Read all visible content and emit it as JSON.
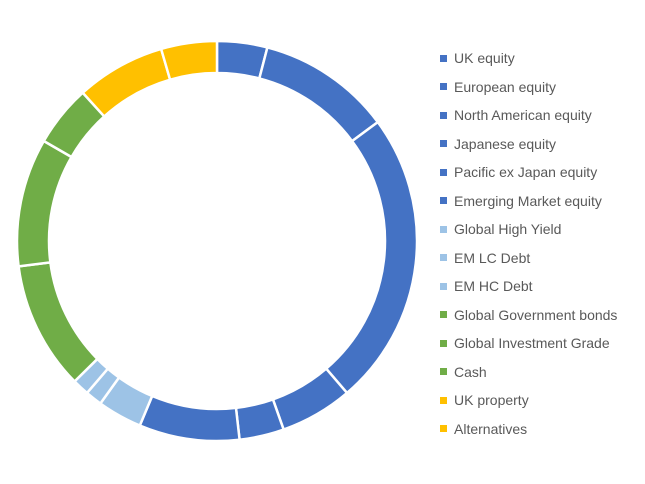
{
  "chart_data": {
    "type": "pie",
    "variant": "doughnut",
    "title": "",
    "legend_position": "right",
    "categories": [
      "UK equity",
      "European equity",
      "North American equity",
      "Japanese equity",
      "Pacific ex Japan equity",
      "Emerging Market equity",
      "Global High Yield",
      "EM LC Debt",
      "EM HC Debt",
      "Global Government bonds",
      "Global Investment Grade",
      "Cash",
      "UK property",
      "Alternatives"
    ],
    "values": [
      4.5,
      12,
      26.5,
      6.5,
      4,
      9,
      4,
      1.5,
      1.5,
      11.5,
      11.5,
      5.5,
      8,
      5
    ],
    "colors": [
      "#4472C4",
      "#4472C4",
      "#4472C4",
      "#4472C4",
      "#4472C4",
      "#4472C4",
      "#9DC3E6",
      "#9DC3E6",
      "#9DC3E6",
      "#70AD47",
      "#70AD47",
      "#70AD47",
      "#FFC000",
      "#FFC000"
    ]
  }
}
